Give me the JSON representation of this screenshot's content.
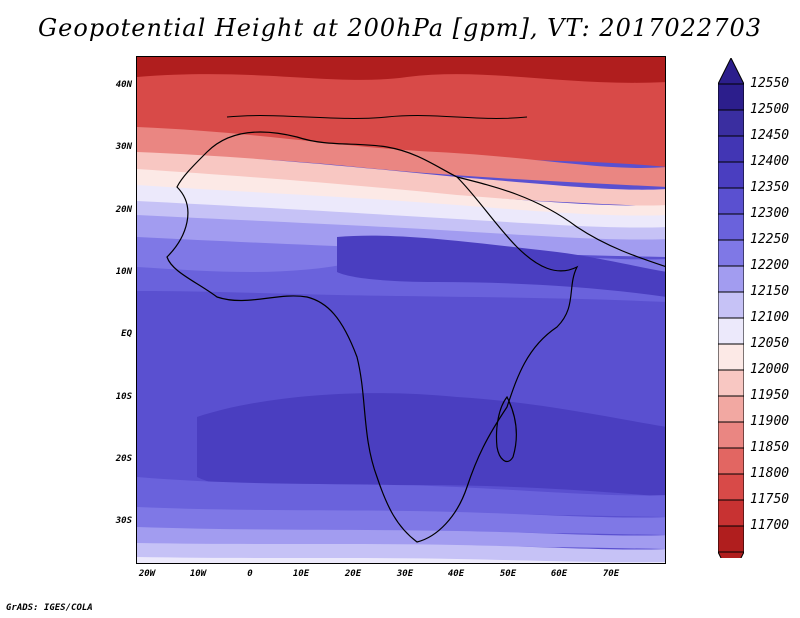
{
  "title": "Geopotential Height at 200hPa [gpm], VT: 2017022703",
  "credit": "GrADS: IGES/COLA",
  "lat_labels": [
    "40N",
    "30N",
    "20N",
    "10N",
    "EQ",
    "10S",
    "20S",
    "30S"
  ],
  "lon_labels": [
    "20W",
    "10W",
    "0",
    "10E",
    "20E",
    "30E",
    "40E",
    "50E",
    "60E",
    "70E"
  ],
  "colorbar": {
    "levels": [
      "12550",
      "12500",
      "12450",
      "12400",
      "12350",
      "12300",
      "12250",
      "12200",
      "12150",
      "12100",
      "12050",
      "12000",
      "11950",
      "11900",
      "11850",
      "11800",
      "11750",
      "11700"
    ],
    "colors": [
      "#2c1e8c",
      "#3a2ea0",
      "#4236b4",
      "#4a3ec0",
      "#5a50d0",
      "#6a62dc",
      "#7f78e6",
      "#a29cf0",
      "#c6c2f6",
      "#ece9fb",
      "#fce9e6",
      "#f8c7c2",
      "#f2a8a2",
      "#ea8682",
      "#e26662",
      "#d84a48",
      "#c83232",
      "#b01e1e"
    ]
  },
  "chart_data": {
    "type": "heatmap",
    "title": "Geopotential Height at 200hPa [gpm], VT: 2017022703",
    "units": "gpm",
    "lon_range": [
      -22,
      80
    ],
    "lat_range": [
      -36,
      45
    ],
    "contour_levels": [
      11700,
      11750,
      11800,
      11850,
      11900,
      11950,
      12000,
      12050,
      12100,
      12150,
      12200,
      12250,
      12300,
      12350,
      12400,
      12450,
      12500,
      12550
    ]
  }
}
